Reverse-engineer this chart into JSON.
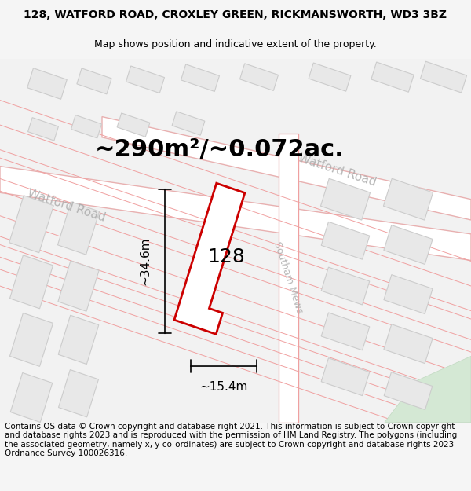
{
  "title_line1": "128, WATFORD ROAD, CROXLEY GREEN, RICKMANSWORTH, WD3 3BZ",
  "title_line2": "Map shows position and indicative extent of the property.",
  "area_text": "~290m²/~0.072ac.",
  "label_128": "128",
  "dim_height": "~34.6m",
  "dim_width": "~15.4m",
  "road_label1": "Watford Road",
  "road_label2": "Watford Road",
  "road_label3": "Southam Mews",
  "footer_text": "Contains OS data © Crown copyright and database right 2021. This information is subject to Crown copyright and database rights 2023 and is reproduced with the permission of HM Land Registry. The polygons (including the associated geometry, namely x, y co-ordinates) are subject to Crown copyright and database rights 2023 Ordnance Survey 100026316.",
  "bg_color": "#f5f5f5",
  "map_bg": "#f0f0f0",
  "building_fill": "#e8e8e8",
  "building_stroke": "#d0d0d0",
  "road_fill": "#ffffff",
  "road_stroke": "#f0a0a0",
  "highlight_fill": "#ffffff",
  "highlight_stroke": "#cc0000",
  "green_fill": "#d4e8d4",
  "title_fontsize": 10,
  "subtitle_fontsize": 9,
  "area_fontsize": 22,
  "label_fontsize": 18,
  "dim_fontsize": 11,
  "footer_fontsize": 7.5
}
